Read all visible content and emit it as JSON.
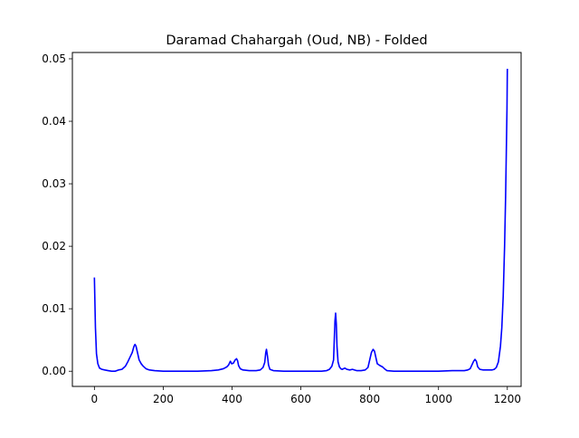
{
  "chart_data": {
    "type": "line",
    "title": "Daramad Chahargah (Oud, NB) - Folded",
    "xlabel": "",
    "ylabel": "",
    "xlim": [
      -64,
      1240
    ],
    "ylim": [
      -0.00243,
      0.05101
    ],
    "x_ticks": [
      0,
      200,
      400,
      600,
      800,
      1000,
      1200
    ],
    "y_ticks": [
      0.0,
      0.01,
      0.02,
      0.03,
      0.04,
      0.05
    ],
    "x_tick_labels": [
      "0",
      "200",
      "400",
      "600",
      "800",
      "1000",
      "1200"
    ],
    "y_tick_labels": [
      "0.00",
      "0.01",
      "0.02",
      "0.03",
      "0.04",
      "0.05"
    ],
    "grid": false,
    "legend": "none",
    "series": [
      {
        "color": "#0000ff",
        "points": [
          [
            0,
            0.015
          ],
          [
            3,
            0.007
          ],
          [
            6,
            0.0028
          ],
          [
            10,
            0.0012
          ],
          [
            15,
            0.0005
          ],
          [
            22,
            0.0003
          ],
          [
            30,
            0.0002
          ],
          [
            40,
            0.0001
          ],
          [
            50,
            0.0
          ],
          [
            60,
            0.0
          ],
          [
            70,
            0.0002
          ],
          [
            80,
            0.0003
          ],
          [
            90,
            0.0008
          ],
          [
            97,
            0.0015
          ],
          [
            103,
            0.0022
          ],
          [
            110,
            0.003
          ],
          [
            115,
            0.004
          ],
          [
            118,
            0.0043
          ],
          [
            121,
            0.004
          ],
          [
            126,
            0.0028
          ],
          [
            130,
            0.0018
          ],
          [
            136,
            0.0012
          ],
          [
            142,
            0.0008
          ],
          [
            150,
            0.0004
          ],
          [
            160,
            0.0002
          ],
          [
            175,
            0.0001
          ],
          [
            200,
            0.0
          ],
          [
            250,
            0.0
          ],
          [
            300,
            0.0
          ],
          [
            340,
            0.0001
          ],
          [
            360,
            0.0002
          ],
          [
            375,
            0.0004
          ],
          [
            385,
            0.0007
          ],
          [
            390,
            0.001
          ],
          [
            395,
            0.0016
          ],
          [
            399,
            0.0012
          ],
          [
            404,
            0.0013
          ],
          [
            409,
            0.0018
          ],
          [
            413,
            0.002
          ],
          [
            416,
            0.0017
          ],
          [
            419,
            0.0009
          ],
          [
            424,
            0.0004
          ],
          [
            432,
            0.0002
          ],
          [
            450,
            0.0001
          ],
          [
            470,
            0.0001
          ],
          [
            482,
            0.0002
          ],
          [
            490,
            0.0006
          ],
          [
            495,
            0.0014
          ],
          [
            498,
            0.003
          ],
          [
            500,
            0.0035
          ],
          [
            503,
            0.0024
          ],
          [
            506,
            0.001
          ],
          [
            510,
            0.0003
          ],
          [
            520,
            0.0001
          ],
          [
            550,
            0.0
          ],
          [
            600,
            0.0
          ],
          [
            640,
            0.0
          ],
          [
            660,
            0.0
          ],
          [
            675,
            0.0001
          ],
          [
            683,
            0.0003
          ],
          [
            690,
            0.0008
          ],
          [
            695,
            0.0018
          ],
          [
            699,
            0.008
          ],
          [
            701,
            0.0093
          ],
          [
            703,
            0.0076
          ],
          [
            705,
            0.004
          ],
          [
            708,
            0.0015
          ],
          [
            712,
            0.0007
          ],
          [
            716,
            0.0004
          ],
          [
            720,
            0.0003
          ],
          [
            728,
            0.0005
          ],
          [
            734,
            0.0003
          ],
          [
            742,
            0.0002
          ],
          [
            750,
            0.0003
          ],
          [
            756,
            0.0002
          ],
          [
            762,
            0.0001
          ],
          [
            775,
            0.0001
          ],
          [
            787,
            0.0002
          ],
          [
            795,
            0.0006
          ],
          [
            800,
            0.0018
          ],
          [
            805,
            0.003
          ],
          [
            810,
            0.0035
          ],
          [
            814,
            0.0032
          ],
          [
            818,
            0.0022
          ],
          [
            822,
            0.0012
          ],
          [
            830,
            0.0009
          ],
          [
            837,
            0.0007
          ],
          [
            843,
            0.0004
          ],
          [
            850,
            0.0001
          ],
          [
            870,
            0.0
          ],
          [
            900,
            0.0
          ],
          [
            950,
            0.0
          ],
          [
            1000,
            0.0
          ],
          [
            1040,
            0.0001
          ],
          [
            1060,
            0.0001
          ],
          [
            1075,
            0.0001
          ],
          [
            1085,
            0.0002
          ],
          [
            1092,
            0.0004
          ],
          [
            1097,
            0.001
          ],
          [
            1102,
            0.0016
          ],
          [
            1106,
            0.0019
          ],
          [
            1110,
            0.0016
          ],
          [
            1114,
            0.0007
          ],
          [
            1120,
            0.0003
          ],
          [
            1130,
            0.0002
          ],
          [
            1145,
            0.0002
          ],
          [
            1155,
            0.0002
          ],
          [
            1162,
            0.0003
          ],
          [
            1168,
            0.0006
          ],
          [
            1174,
            0.0015
          ],
          [
            1180,
            0.004
          ],
          [
            1184,
            0.007
          ],
          [
            1188,
            0.012
          ],
          [
            1192,
            0.02
          ],
          [
            1195,
            0.028
          ],
          [
            1197,
            0.035
          ],
          [
            1199,
            0.042
          ],
          [
            1200,
            0.0484
          ]
        ]
      }
    ]
  }
}
